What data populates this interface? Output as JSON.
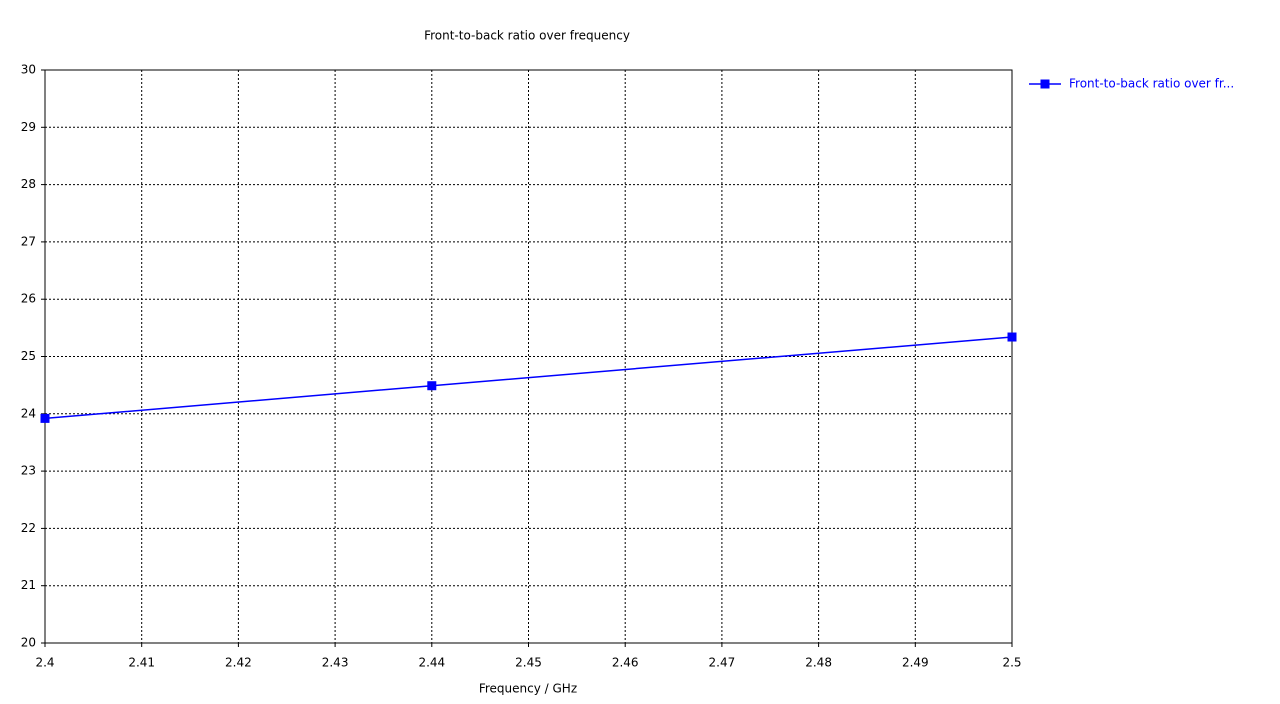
{
  "chart_data": {
    "type": "line",
    "title": "Front-to-back ratio over frequency",
    "x_label": "Frequency / GHz",
    "x": [
      2.4,
      2.44,
      2.5
    ],
    "series": [
      {
        "name": "Front-to-back ratio over fr...",
        "color": "#0000ff",
        "values": [
          23.92,
          24.49,
          25.34
        ]
      }
    ],
    "xlim": [
      2.4,
      2.5
    ],
    "xticks": [
      2.4,
      2.41,
      2.42,
      2.43,
      2.44,
      2.45,
      2.46,
      2.47,
      2.48,
      2.49,
      2.5
    ],
    "ylim": [
      20,
      30
    ],
    "yticks": [
      20,
      21,
      22,
      23,
      24,
      25,
      26,
      27,
      28,
      29,
      30
    ],
    "grid": true,
    "legend": "right"
  }
}
